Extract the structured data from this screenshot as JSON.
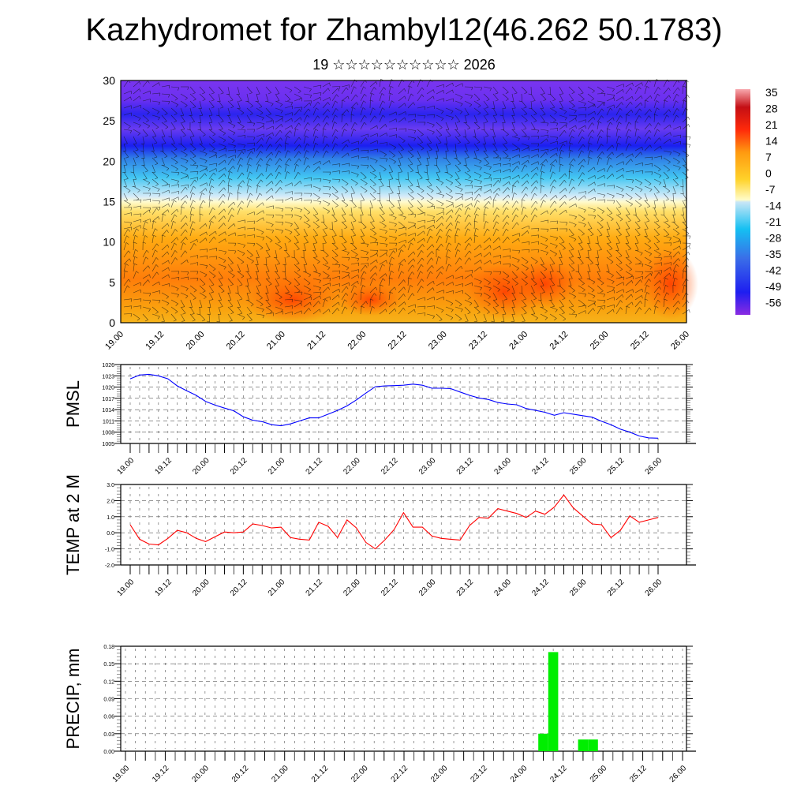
{
  "title": "Kazhydromet for Zhambyl12(46.262 50.1783)",
  "subtitle": "19 ☆☆☆☆☆☆☆☆☆☆ 2026",
  "time_labels": [
    "19.00",
    "19.12",
    "20.00",
    "20.12",
    "21.00",
    "21.12",
    "22.00",
    "22.12",
    "23.00",
    "23.12",
    "24.00",
    "24.12",
    "25.00",
    "25.12",
    "26.00"
  ],
  "chart_data": [
    {
      "type": "heatmap",
      "title": "",
      "xlabel": "",
      "ylabel": "",
      "ylim": [
        0,
        30
      ],
      "yticks": [
        "0",
        "5",
        "10",
        "15",
        "20",
        "25",
        "30"
      ],
      "colorbar": {
        "labels": [
          "35",
          "28",
          "21",
          "14",
          "7",
          "0",
          "-7",
          "-14",
          "-21",
          "-28",
          "-35",
          "-42",
          "-49",
          "-56"
        ],
        "range": [
          -63,
          42
        ]
      },
      "overlay": "wind barbs"
    },
    {
      "type": "line",
      "ylabel": "PMSL",
      "ylim": [
        1005,
        1026
      ],
      "yticks": [
        "1005",
        "1008",
        "1011",
        "1014",
        "1017",
        "1020",
        "1023",
        "1026"
      ],
      "series": [
        {
          "name": "PMSL",
          "color": "#0000ff",
          "values": [
            1022.2,
            1023.2,
            1023.4,
            1023.0,
            1022.2,
            1020.3,
            1019.0,
            1017.8,
            1016.2,
            1015.2,
            1014.4,
            1013.7,
            1012.1,
            1011.2,
            1010.8,
            1010.0,
            1009.7,
            1010.2,
            1011.0,
            1011.8,
            1011.8,
            1012.8,
            1013.8,
            1015.0,
            1016.6,
            1018.4,
            1020.1,
            1020.3,
            1020.4,
            1020.5,
            1020.8,
            1020.5,
            1019.7,
            1019.7,
            1019.6,
            1018.7,
            1017.8,
            1017.1,
            1016.7,
            1015.9,
            1015.5,
            1015.3,
            1014.3,
            1013.8,
            1013.3,
            1012.5,
            1013.2,
            1012.8,
            1012.4,
            1012.0,
            1010.9,
            1010.0,
            1008.8,
            1008.0,
            1007.0,
            1006.5,
            1006.4
          ]
        }
      ]
    },
    {
      "type": "line",
      "ylabel": "TEMP at 2 M",
      "ylim": [
        -2.0,
        3.0
      ],
      "yticks": [
        "-2.0",
        "-1.0",
        "0.0",
        "1.0",
        "2.0",
        "3.0"
      ],
      "series": [
        {
          "name": "TEMP",
          "color": "#ff0000",
          "values": [
            0.5,
            -0.4,
            -0.7,
            -0.75,
            -0.35,
            0.15,
            0.0,
            -0.35,
            -0.55,
            -0.25,
            0.05,
            0.0,
            0.05,
            0.55,
            0.45,
            0.3,
            0.35,
            -0.3,
            -0.4,
            -0.45,
            0.65,
            0.4,
            -0.3,
            0.8,
            0.3,
            -0.6,
            -1.0,
            -0.45,
            0.2,
            1.25,
            0.35,
            0.35,
            -0.2,
            -0.35,
            -0.4,
            -0.45,
            0.45,
            0.95,
            0.9,
            1.5,
            1.35,
            1.2,
            0.95,
            1.35,
            1.15,
            1.6,
            2.35,
            1.55,
            1.05,
            0.55,
            0.5,
            -0.3,
            0.15,
            1.05,
            0.65,
            0.8,
            0.95
          ]
        }
      ]
    },
    {
      "type": "bar",
      "ylabel": "PRECIP, mm",
      "ylim": [
        0.0,
        0.18
      ],
      "yticks": [
        "0.00",
        "0.03",
        "0.06",
        "0.09",
        "0.12",
        "0.15",
        "0.18"
      ],
      "series": [
        {
          "name": "PRECIP",
          "color": "#00ee00",
          "bars": [
            {
              "step": 42,
              "value": 0.03
            },
            {
              "step": 43,
              "value": 0.17
            },
            {
              "step": 46,
              "value": 0.02
            },
            {
              "step": 47,
              "value": 0.02
            }
          ]
        }
      ]
    }
  ]
}
